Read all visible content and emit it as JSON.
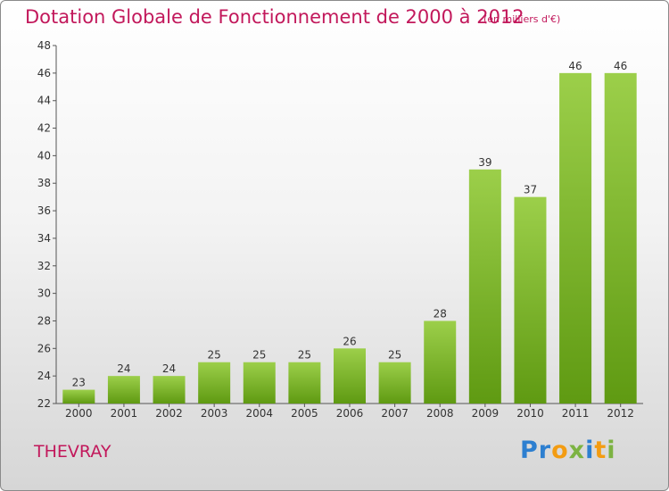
{
  "header": {
    "title": "Dotation Globale de Fonctionnement de 2000 à 2012",
    "subtitle": "(en milliers d'€)"
  },
  "footer": {
    "commune": "THEVRAY",
    "logo_text": "Proxiti"
  },
  "colors": {
    "title": "#c2185b",
    "bar_light": "#9ccf4a",
    "bar_dark": "#5f9a12"
  },
  "chart_data": {
    "type": "bar",
    "title": "Dotation Globale de Fonctionnement de 2000 à 2012",
    "subtitle": "(en milliers d'€)",
    "categories": [
      "2000",
      "2001",
      "2002",
      "2003",
      "2004",
      "2005",
      "2006",
      "2007",
      "2008",
      "2009",
      "2010",
      "2011",
      "2012"
    ],
    "values": [
      23,
      24,
      24,
      25,
      25,
      25,
      26,
      25,
      28,
      39,
      37,
      46,
      46
    ],
    "ylim": [
      22,
      48
    ],
    "yticks": [
      22,
      24,
      26,
      28,
      30,
      32,
      34,
      36,
      38,
      40,
      42,
      44,
      46,
      48
    ],
    "grid": false,
    "xlabel": "",
    "ylabel": ""
  }
}
